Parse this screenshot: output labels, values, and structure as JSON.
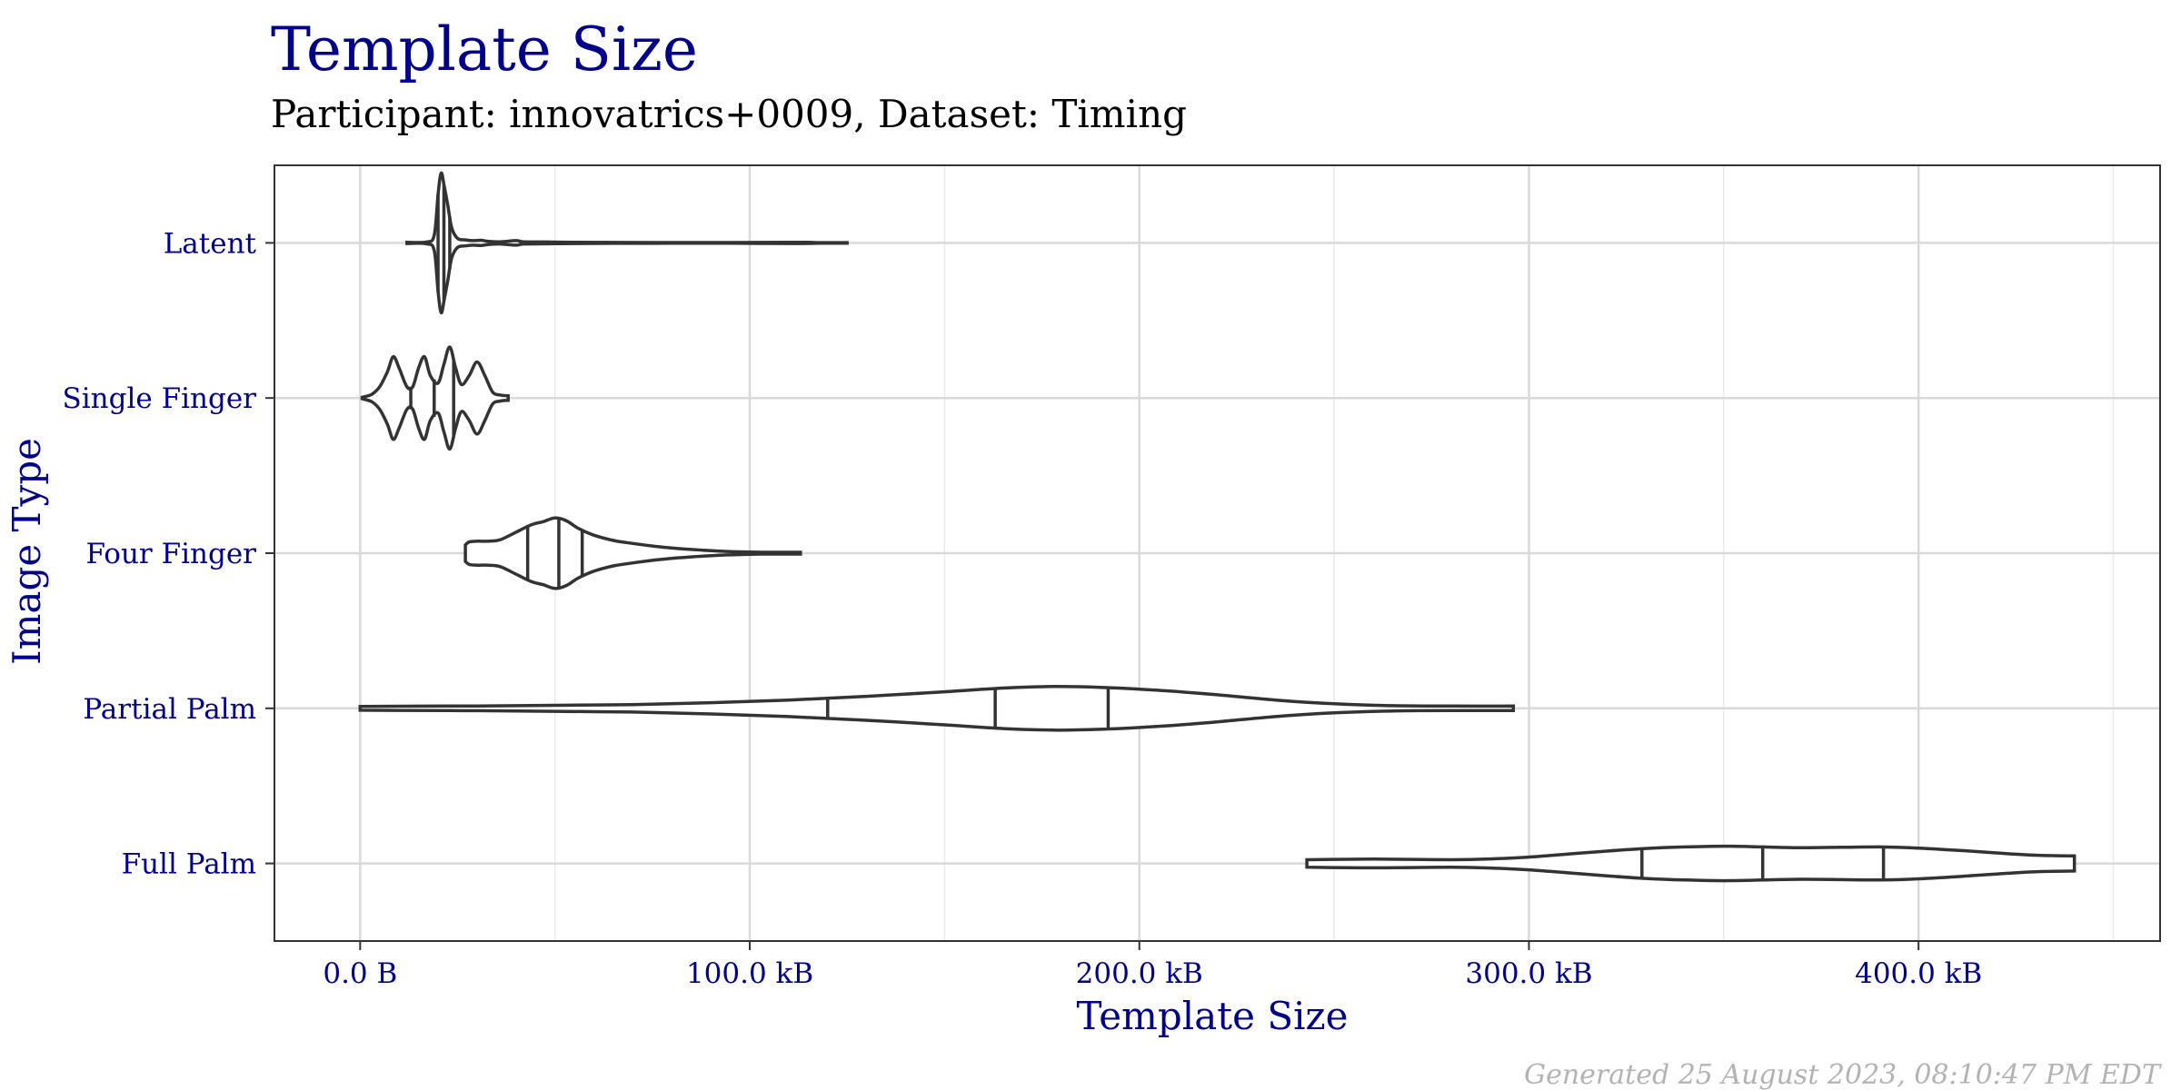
{
  "chart_data": {
    "type": "violin",
    "title": "Template Size",
    "subtitle": "Participant: innovatrics+0009, Dataset: Timing",
    "xlabel": "Template Size",
    "ylabel": "Image Type",
    "caption": "Generated 25 August 2023, 08:10:47 PM EDT",
    "xlim": [
      -22,
      462
    ],
    "x_ticks": [
      {
        "value": 0,
        "label": "0.0 B"
      },
      {
        "value": 100,
        "label": "100.0 kB"
      },
      {
        "value": 200,
        "label": "200.0 kB"
      },
      {
        "value": 300,
        "label": "300.0 kB"
      },
      {
        "value": 400,
        "label": "400.0 kB"
      }
    ],
    "x_minor_ticks": [
      50,
      150,
      250,
      350,
      450
    ],
    "x_unit": "kB",
    "grid": true,
    "categories": [
      "Latent",
      "Single Finger",
      "Four Finger",
      "Partial Palm",
      "Full Palm"
    ],
    "colors": {
      "title": "#00008b",
      "outline": "#333333",
      "grid": "#d9d9d9",
      "caption": "#b3b3b3"
    },
    "series": [
      {
        "category": "Latent",
        "min": 12,
        "max": 125,
        "quantiles": [
          20,
          21.5,
          23
        ],
        "density": [
          [
            12,
            0.008
          ],
          [
            17,
            0.012
          ],
          [
            19,
            0.1
          ],
          [
            20,
            0.65
          ],
          [
            20.8,
            0.93
          ],
          [
            21.6,
            0.75
          ],
          [
            22.5,
            0.5
          ],
          [
            23.5,
            0.2
          ],
          [
            25,
            0.06
          ],
          [
            27,
            0.04
          ],
          [
            29,
            0.03
          ],
          [
            31,
            0.035
          ],
          [
            33,
            0.02
          ],
          [
            36,
            0.015
          ],
          [
            40,
            0.03
          ],
          [
            42,
            0.015
          ],
          [
            48,
            0.012
          ],
          [
            55,
            0.008
          ],
          [
            65,
            0.006
          ],
          [
            80,
            0.005
          ],
          [
            95,
            0.005
          ],
          [
            113,
            0.008
          ],
          [
            118,
            0.004
          ],
          [
            125,
            0.004
          ]
        ]
      },
      {
        "category": "Single Finger",
        "min": 0.5,
        "max": 38,
        "quantiles": [
          13,
          19,
          24
        ],
        "density": [
          [
            0.5,
            0.01
          ],
          [
            3,
            0.05
          ],
          [
            5,
            0.15
          ],
          [
            7,
            0.35
          ],
          [
            8.5,
            0.55
          ],
          [
            10,
            0.4
          ],
          [
            12,
            0.15
          ],
          [
            13.5,
            0.15
          ],
          [
            15,
            0.4
          ],
          [
            16.5,
            0.55
          ],
          [
            18,
            0.3
          ],
          [
            20,
            0.2
          ],
          [
            21.5,
            0.45
          ],
          [
            23,
            0.68
          ],
          [
            24.5,
            0.4
          ],
          [
            26,
            0.18
          ],
          [
            28,
            0.3
          ],
          [
            30,
            0.48
          ],
          [
            32,
            0.3
          ],
          [
            34,
            0.08
          ],
          [
            36,
            0.04
          ],
          [
            38,
            0.03
          ]
        ]
      },
      {
        "category": "Four Finger",
        "min": 27,
        "max": 113,
        "quantiles": [
          43,
          51,
          57
        ],
        "density": [
          [
            27,
            0.11
          ],
          [
            28,
            0.15
          ],
          [
            30,
            0.16
          ],
          [
            33,
            0.16
          ],
          [
            36,
            0.18
          ],
          [
            40,
            0.28
          ],
          [
            44,
            0.38
          ],
          [
            47,
            0.42
          ],
          [
            50,
            0.47
          ],
          [
            53,
            0.43
          ],
          [
            56,
            0.33
          ],
          [
            60,
            0.24
          ],
          [
            65,
            0.17
          ],
          [
            70,
            0.13
          ],
          [
            76,
            0.09
          ],
          [
            82,
            0.06
          ],
          [
            88,
            0.04
          ],
          [
            93,
            0.025
          ],
          [
            100,
            0.015
          ],
          [
            106,
            0.012
          ],
          [
            113,
            0.012
          ]
        ]
      },
      {
        "category": "Partial Palm",
        "min": 0,
        "max": 296,
        "quantiles": [
          120,
          163,
          192
        ],
        "density": [
          [
            0,
            0.025
          ],
          [
            10,
            0.028
          ],
          [
            30,
            0.032
          ],
          [
            50,
            0.04
          ],
          [
            70,
            0.05
          ],
          [
            90,
            0.075
          ],
          [
            110,
            0.11
          ],
          [
            130,
            0.16
          ],
          [
            150,
            0.22
          ],
          [
            165,
            0.27
          ],
          [
            178,
            0.29
          ],
          [
            190,
            0.28
          ],
          [
            205,
            0.24
          ],
          [
            220,
            0.18
          ],
          [
            235,
            0.11
          ],
          [
            250,
            0.06
          ],
          [
            265,
            0.035
          ],
          [
            280,
            0.03
          ],
          [
            296,
            0.03
          ]
        ]
      },
      {
        "category": "Full Palm",
        "min": 243,
        "max": 440,
        "quantiles": [
          329,
          360,
          391
        ],
        "density": [
          [
            243,
            0.05
          ],
          [
            250,
            0.055
          ],
          [
            260,
            0.058
          ],
          [
            270,
            0.055
          ],
          [
            280,
            0.05
          ],
          [
            290,
            0.06
          ],
          [
            300,
            0.085
          ],
          [
            310,
            0.125
          ],
          [
            320,
            0.165
          ],
          [
            330,
            0.2
          ],
          [
            340,
            0.22
          ],
          [
            350,
            0.23
          ],
          [
            360,
            0.22
          ],
          [
            370,
            0.21
          ],
          [
            380,
            0.215
          ],
          [
            390,
            0.22
          ],
          [
            400,
            0.205
          ],
          [
            410,
            0.175
          ],
          [
            420,
            0.14
          ],
          [
            430,
            0.11
          ],
          [
            440,
            0.1
          ]
        ]
      }
    ]
  }
}
